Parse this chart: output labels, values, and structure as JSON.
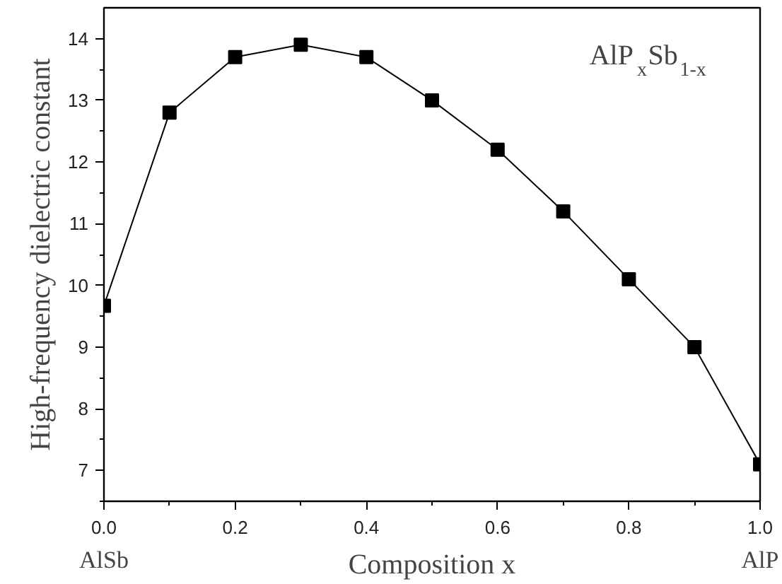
{
  "chart_data": {
    "type": "line",
    "xlabel": "Composition x",
    "ylabel": "High-frequency dielectric constant",
    "x": [
      0,
      0.1,
      0.2,
      0.3,
      0.4,
      0.5,
      0.6,
      0.7,
      0.8,
      0.9,
      1.0
    ],
    "series": [
      {
        "color": "#000000",
        "values": [
          9.67,
          12.8,
          13.7,
          13.9,
          13.7,
          13.0,
          12.2,
          11.2,
          10.1,
          9.0,
          7.1
        ]
      }
    ],
    "xlim": [
      0,
      1.0
    ],
    "xticks": [
      {
        "value": 0,
        "label": "0.0"
      },
      0.2,
      0.4,
      0.6,
      0.8,
      {
        "value": 1.0,
        "label": "1.0"
      }
    ],
    "ylim": [
      6.5,
      14.5
    ],
    "yticks": [
      7,
      8,
      9,
      10,
      11,
      12,
      13,
      14
    ],
    "marker": "square",
    "line_style": "solid",
    "grid": false,
    "annotations": [
      "AlP$_{x}$Sb$_{1-x}$",
      "AlSb",
      "AlP"
    ]
  }
}
